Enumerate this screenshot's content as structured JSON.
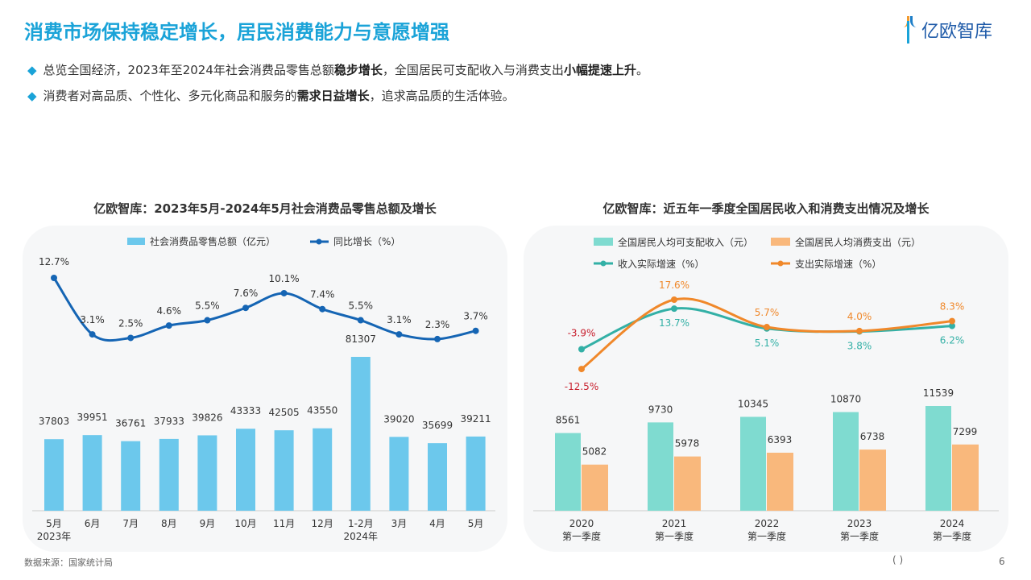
{
  "header": {
    "title": "消费市场保持稳定增长，居民消费能力与意愿增强",
    "logo_text": "亿欧智库"
  },
  "bullets": [
    {
      "parts": [
        {
          "t": "总览全国经济，2023年至2024年社会消费品零售总额",
          "b": false
        },
        {
          "t": "稳步增长",
          "b": true
        },
        {
          "t": "，全国居民可支配收入与消费支出",
          "b": false
        },
        {
          "t": "小幅提速上升",
          "b": true
        },
        {
          "t": "。",
          "b": false
        }
      ]
    },
    {
      "parts": [
        {
          "t": "消费者对高品质、个性化、多元化商品和服务的",
          "b": false
        },
        {
          "t": "需求日益增长",
          "b": true
        },
        {
          "t": "，追求高品质的生活体验。",
          "b": false
        }
      ]
    }
  ],
  "footer": {
    "source": "数据来源：国家统计局",
    "page": "6",
    "paren": "(              )"
  },
  "colors": {
    "accent": "#1aa3d8",
    "bar_left": "#6cc8ec",
    "line_left": "#1565b4",
    "income_bar": "#7fdbd0",
    "spend_bar": "#f9b87c",
    "income_line": "#33b0a6",
    "spend_line": "#f0882a",
    "negative": "#c8202e"
  },
  "chart_data": [
    {
      "type": "bar+line",
      "title": "亿欧智库：2023年5月-2024年5月社会消费品零售总额及增长",
      "categories": [
        "5月\n2023年",
        "6月",
        "7月",
        "8月",
        "9月",
        "10月",
        "11月",
        "12月",
        "1-2月\n2024年",
        "3月",
        "4月",
        "5月"
      ],
      "series": [
        {
          "name": "社会消费品零售总额（亿元）",
          "type": "bar",
          "values": [
            37803,
            39951,
            36761,
            37933,
            39826,
            43333,
            42505,
            43550,
            81307,
            39020,
            35699,
            39211
          ]
        },
        {
          "name": "同比增长（%）",
          "type": "line",
          "values": [
            12.7,
            3.1,
            2.5,
            4.6,
            5.5,
            7.6,
            10.1,
            7.4,
            5.5,
            3.1,
            2.3,
            3.7
          ]
        }
      ],
      "legend": "top"
    },
    {
      "type": "bar+line",
      "title": "亿欧智库：近五年一季度全国居民收入和消费支出情况及增长",
      "categories": [
        "2020\n第一季度",
        "2021\n第一季度",
        "2022\n第一季度",
        "2023\n第一季度",
        "2024\n第一季度"
      ],
      "series": [
        {
          "name": "全国居民人均可支配收入（元）",
          "type": "bar",
          "values": [
            8561,
            9730,
            10345,
            10870,
            11539
          ]
        },
        {
          "name": "全国居民人均消费支出（元）",
          "type": "bar",
          "values": [
            5082,
            5978,
            6393,
            6738,
            7299
          ]
        },
        {
          "name": "收入实际增速（%）",
          "type": "line",
          "values": [
            -3.9,
            13.7,
            5.1,
            3.8,
            6.2
          ]
        },
        {
          "name": "支出实际增速（%）",
          "type": "line",
          "values": [
            -12.5,
            17.6,
            5.7,
            4.0,
            8.3
          ]
        }
      ],
      "legend": "top"
    }
  ]
}
